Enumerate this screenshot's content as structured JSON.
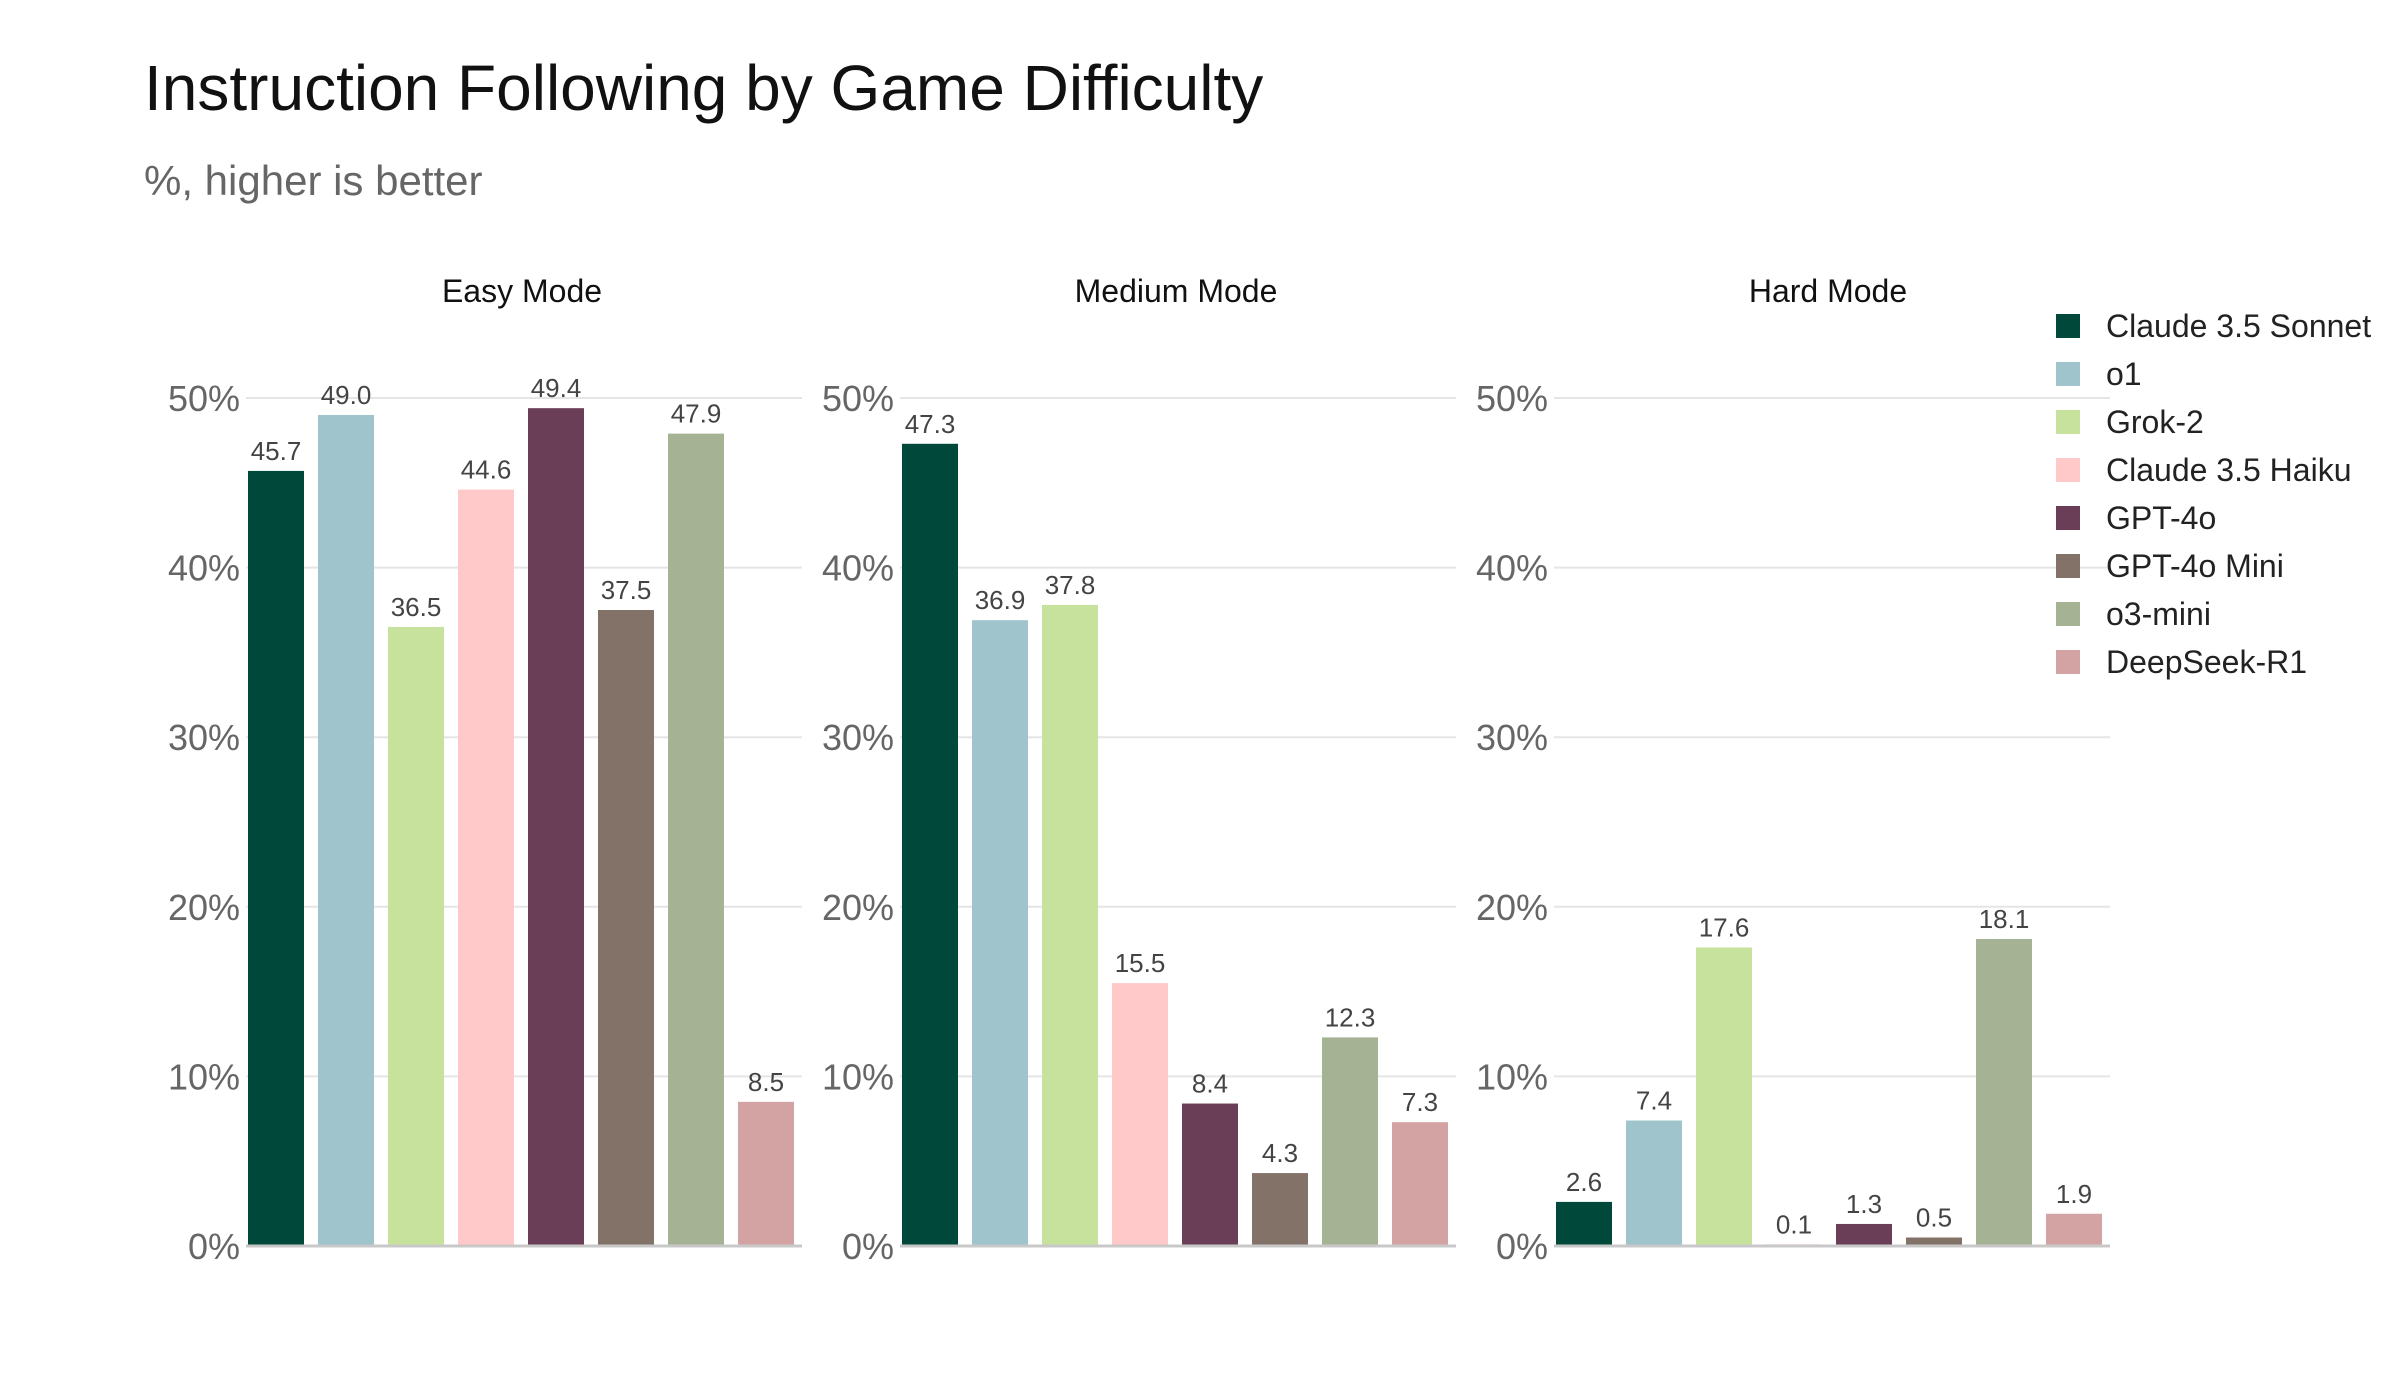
{
  "chart_data": {
    "type": "bar",
    "title": "Instruction Following by Game Difficulty",
    "subtitle": "%, higher is better",
    "ylim": [
      0,
      50
    ],
    "yticks": [
      0,
      10,
      20,
      30,
      40,
      50
    ],
    "ytick_labels": [
      "0%",
      "10%",
      "20%",
      "30%",
      "40%",
      "50%"
    ],
    "legend_position": "top-right",
    "grid": true,
    "series": [
      {
        "name": "Claude 3.5 Sonnet",
        "color": "#00493a"
      },
      {
        "name": "o1",
        "color": "#a0c4cc"
      },
      {
        "name": "Grok-2",
        "color": "#c6e29c"
      },
      {
        "name": "Claude 3.5 Haiku",
        "color": "#ffc9c9"
      },
      {
        "name": "GPT-4o",
        "color": "#6b3e57"
      },
      {
        "name": "GPT-4o Mini",
        "color": "#837267"
      },
      {
        "name": "o3-mini",
        "color": "#a5b394"
      },
      {
        "name": "DeepSeek-R1",
        "color": "#d3a3a3"
      }
    ],
    "panels": [
      {
        "title": "Easy Mode",
        "values": [
          45.7,
          49.0,
          36.5,
          44.6,
          49.4,
          37.5,
          47.9,
          8.5
        ],
        "labels": [
          "45.7",
          "49.0",
          "36.5",
          "44.6",
          "49.4",
          "37.5",
          "47.9",
          "8.5"
        ]
      },
      {
        "title": "Medium Mode",
        "values": [
          47.3,
          36.9,
          37.8,
          15.5,
          8.4,
          4.3,
          12.3,
          7.3
        ],
        "labels": [
          "47.3",
          "36.9",
          "37.8",
          "15.5",
          "8.4",
          "4.3",
          "12.3",
          "7.3"
        ]
      },
      {
        "title": "Hard Mode",
        "values": [
          2.6,
          7.4,
          17.6,
          0.1,
          1.3,
          0.5,
          18.1,
          1.9
        ],
        "labels": [
          "2.6",
          "7.4",
          "17.6",
          "0.1",
          "1.3",
          "0.5",
          "18.1",
          "1.9"
        ]
      }
    ]
  }
}
